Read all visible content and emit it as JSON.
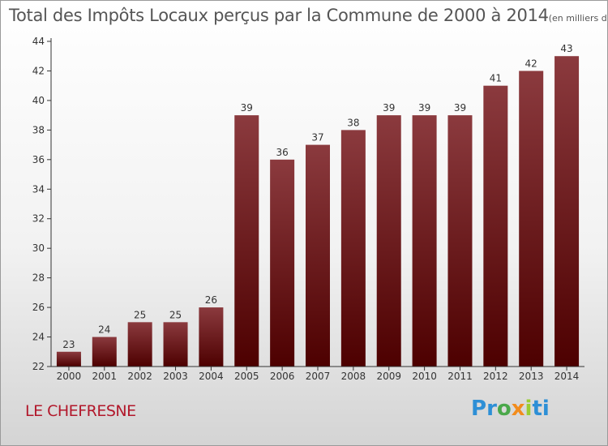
{
  "title": "Total des Impôts Locaux perçus par la Commune de 2000 à 2014",
  "unit": "(en milliers d'€)",
  "commune": "LE CHEFRESNE",
  "logo": {
    "letters": [
      "P",
      "r",
      "o",
      "x",
      "i",
      "ti"
    ]
  },
  "colors": {
    "bar_top": "#8b3a3e",
    "bar_bottom": "#4d0000",
    "axis": "#333333",
    "grid": "#cccccc"
  },
  "chart_data": {
    "type": "bar",
    "title": "Total des Impôts Locaux perçus par la Commune de 2000 à 2014",
    "xlabel": "",
    "ylabel": "",
    "ylim": [
      22,
      44
    ],
    "yticks": [
      22,
      24,
      26,
      28,
      30,
      32,
      34,
      36,
      38,
      40,
      42,
      44
    ],
    "categories": [
      "2000",
      "2001",
      "2002",
      "2003",
      "2004",
      "2005",
      "2006",
      "2007",
      "2008",
      "2009",
      "2010",
      "2011",
      "2012",
      "2013",
      "2014"
    ],
    "values": [
      23,
      24,
      25,
      25,
      26,
      39,
      36,
      37,
      38,
      39,
      39,
      39,
      41,
      42,
      43
    ]
  }
}
